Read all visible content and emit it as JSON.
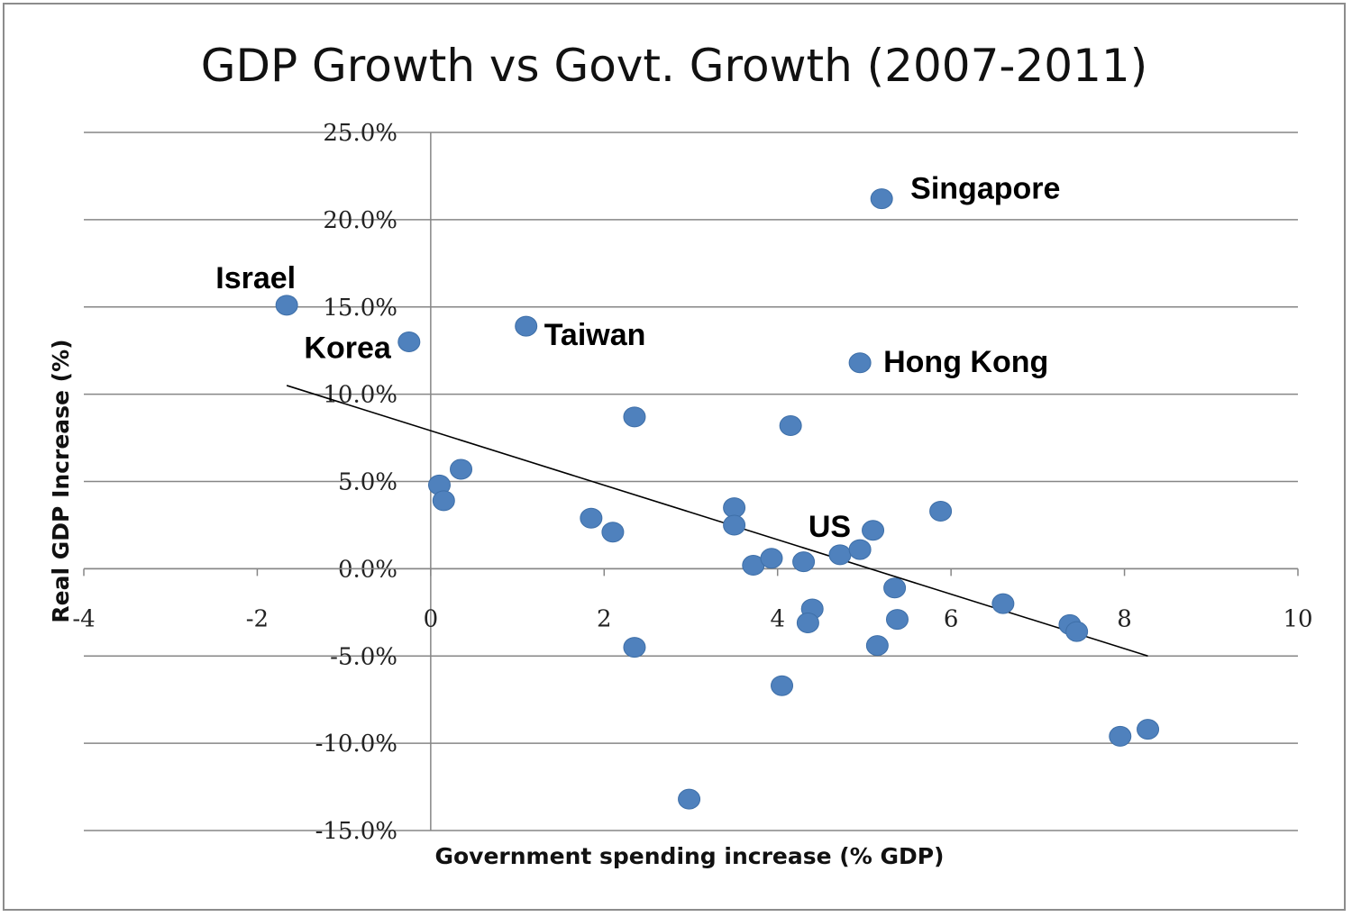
{
  "chart_data": {
    "type": "scatter",
    "title": "GDP Growth vs Govt. Growth (2007-2011)",
    "xlabel": "Government spending increase (% GDP)",
    "ylabel": "Real GDP Increase (%)",
    "xlim": [
      -4,
      10
    ],
    "ylim": [
      -15,
      25
    ],
    "xticks": [
      -4,
      -2,
      0,
      2,
      4,
      6,
      8,
      10
    ],
    "xtick_labels": [
      "-4",
      "-2",
      "0",
      "2",
      "4",
      "6",
      "8",
      "10"
    ],
    "yticks": [
      -15,
      -10,
      -5,
      0,
      5,
      10,
      15,
      20,
      25
    ],
    "ytick_labels": [
      "-15.0%",
      "-10.0%",
      "-5.0%",
      "0.0%",
      "5.0%",
      "10.0%",
      "15.0%",
      "20.0%",
      "25.0%"
    ],
    "grid": "horizontal",
    "marker_color": "#4f81bd",
    "trendline": {
      "x": [
        -1.66,
        8.27
      ],
      "y": [
        10.5,
        -5.0
      ],
      "color": "#000000"
    },
    "points": [
      {
        "x": 5.2,
        "y": 21.2,
        "label": "Singapore"
      },
      {
        "x": -1.66,
        "y": 15.1,
        "label": "Israel"
      },
      {
        "x": -0.25,
        "y": 13.0,
        "label": "Korea"
      },
      {
        "x": 1.1,
        "y": 13.9,
        "label": "Taiwan"
      },
      {
        "x": 4.95,
        "y": 11.8,
        "label": "Hong Kong"
      },
      {
        "x": 2.35,
        "y": 8.7
      },
      {
        "x": 4.15,
        "y": 8.2
      },
      {
        "x": 0.35,
        "y": 5.7
      },
      {
        "x": 0.1,
        "y": 4.8
      },
      {
        "x": 0.15,
        "y": 3.9
      },
      {
        "x": 1.85,
        "y": 2.9
      },
      {
        "x": 2.1,
        "y": 2.1
      },
      {
        "x": 3.5,
        "y": 3.5
      },
      {
        "x": 3.5,
        "y": 2.5
      },
      {
        "x": 3.72,
        "y": 0.2
      },
      {
        "x": 3.93,
        "y": 0.6
      },
      {
        "x": 4.3,
        "y": 0.4
      },
      {
        "x": 4.72,
        "y": 0.8
      },
      {
        "x": 4.95,
        "y": 1.1,
        "label": "US"
      },
      {
        "x": 5.1,
        "y": 2.2
      },
      {
        "x": 5.88,
        "y": 3.3
      },
      {
        "x": 5.35,
        "y": -1.1
      },
      {
        "x": 5.38,
        "y": -2.9
      },
      {
        "x": 6.6,
        "y": -2.0
      },
      {
        "x": 4.4,
        "y": -2.3
      },
      {
        "x": 4.35,
        "y": -3.1
      },
      {
        "x": 5.15,
        "y": -4.4
      },
      {
        "x": 2.35,
        "y": -4.5
      },
      {
        "x": 7.37,
        "y": -3.2
      },
      {
        "x": 7.45,
        "y": -3.6
      },
      {
        "x": 4.05,
        "y": -6.7
      },
      {
        "x": 7.95,
        "y": -9.6
      },
      {
        "x": 8.27,
        "y": -9.2
      },
      {
        "x": 2.98,
        "y": -13.2
      }
    ]
  }
}
